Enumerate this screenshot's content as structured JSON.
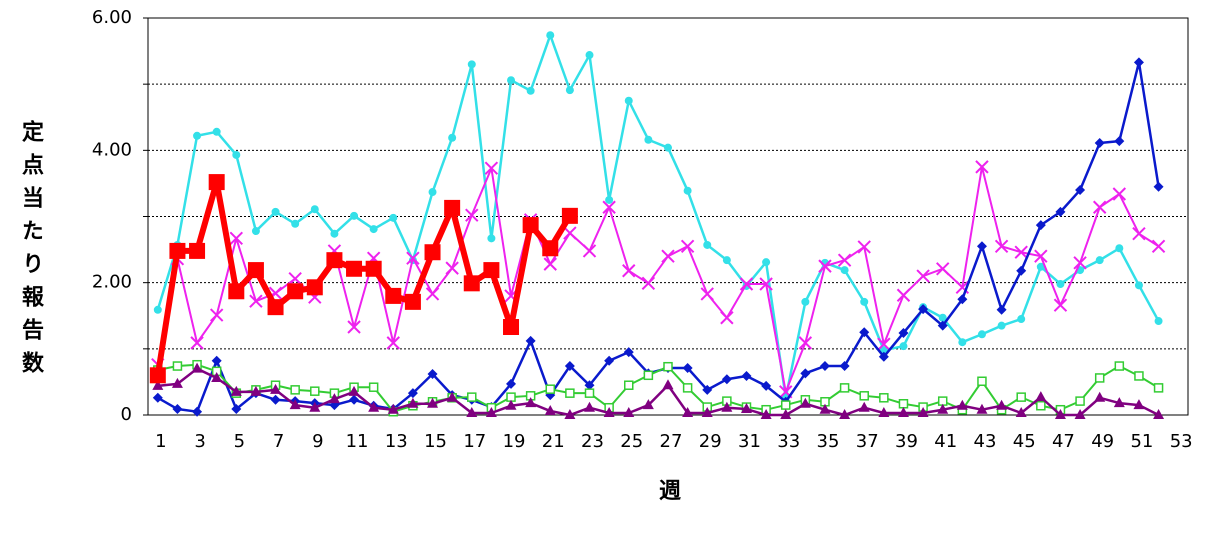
{
  "chart_data": {
    "type": "line",
    "y_label": "定点当たり報告数",
    "x_label": "週",
    "categories": [
      "1",
      null,
      "3",
      null,
      "5",
      null,
      "7",
      null,
      "9",
      null,
      "11",
      null,
      "13",
      null,
      "15",
      null,
      "17",
      null,
      "19",
      null,
      "21",
      null,
      "23",
      null,
      "25",
      null,
      "27",
      null,
      "29",
      null,
      "31",
      null,
      "33",
      null,
      "35",
      null,
      "37",
      null,
      "39",
      null,
      "41",
      null,
      "43",
      null,
      "45",
      null,
      "47",
      null,
      "49",
      null,
      "51",
      null,
      "53"
    ],
    "ylim": [
      0,
      6
    ],
    "yticks": [
      0,
      {
        "value": 1,
        "label": null
      },
      {
        "value": 2,
        "label": "2.00"
      },
      {
        "value": 3,
        "label": null
      },
      {
        "value": 4,
        "label": "4.00"
      },
      {
        "value": 5,
        "label": null
      },
      {
        "value": 6,
        "label": "6.00"
      }
    ],
    "grid": true,
    "series": [
      {
        "color": "#33e0e8",
        "marker": "circle",
        "width": 2.5,
        "values": [
          1.59,
          2.57,
          4.22,
          4.28,
          3.93,
          2.78,
          3.07,
          2.89,
          3.11,
          2.74,
          3.01,
          2.81,
          2.98,
          2.34,
          3.37,
          4.19,
          5.3,
          2.67,
          5.06,
          4.9,
          5.74,
          4.91,
          5.44,
          3.25,
          4.75,
          4.16,
          4.04,
          3.39,
          2.57,
          2.34,
          1.95,
          2.31,
          0.26,
          1.71,
          2.3,
          2.19,
          1.71,
          0.98,
          1.04,
          1.63,
          1.47,
          1.1,
          1.22,
          1.35,
          1.45,
          2.24,
          1.98,
          2.19,
          2.34,
          2.52,
          1.96,
          1.42,
          null
        ]
      },
      {
        "color": "#ee22ee",
        "marker": "x",
        "width": 2,
        "values": [
          0.76,
          2.36,
          1.09,
          1.51,
          2.67,
          1.72,
          1.84,
          2.06,
          1.78,
          2.48,
          1.33,
          2.37,
          1.09,
          2.37,
          1.83,
          2.22,
          3.02,
          3.73,
          1.8,
          2.95,
          2.28,
          2.75,
          2.48,
          3.14,
          2.18,
          1.99,
          2.4,
          2.55,
          1.83,
          1.47,
          1.98,
          1.98,
          0.35,
          1.09,
          2.25,
          2.34,
          2.54,
          1.07,
          1.81,
          2.1,
          2.21,
          1.93,
          3.75,
          2.55,
          2.46,
          2.4,
          1.66,
          2.3,
          3.14,
          3.34,
          2.74,
          2.55,
          null
        ]
      },
      {
        "color": "#0a1acc",
        "marker": "diamond",
        "width": 2.5,
        "values": [
          0.26,
          0.09,
          0.05,
          0.82,
          0.09,
          0.33,
          0.23,
          0.21,
          0.18,
          0.15,
          0.23,
          0.14,
          0.09,
          0.33,
          0.62,
          0.3,
          0.23,
          0.12,
          0.47,
          1.12,
          0.3,
          0.74,
          0.45,
          0.82,
          0.95,
          0.63,
          0.71,
          0.71,
          0.38,
          0.54,
          0.59,
          0.44,
          0.2,
          0.63,
          0.74,
          0.74,
          1.25,
          0.88,
          1.24,
          1.6,
          1.35,
          1.75,
          2.55,
          1.59,
          2.18,
          2.87,
          3.07,
          3.4,
          4.11,
          4.14,
          5.33,
          3.45,
          null
        ]
      },
      {
        "color": "#33cc33",
        "marker": "square-open",
        "width": 2,
        "values": [
          0.68,
          0.74,
          0.76,
          0.66,
          0.33,
          0.38,
          0.45,
          0.38,
          0.36,
          0.33,
          0.42,
          0.42,
          0.05,
          0.14,
          0.2,
          0.26,
          0.27,
          0.11,
          0.27,
          0.29,
          0.39,
          0.33,
          0.33,
          0.11,
          0.45,
          0.6,
          0.73,
          0.41,
          0.12,
          0.21,
          0.12,
          0.08,
          0.15,
          0.23,
          0.2,
          0.41,
          0.29,
          0.26,
          0.17,
          0.12,
          0.21,
          0.08,
          0.51,
          0.08,
          0.27,
          0.14,
          0.08,
          0.21,
          0.56,
          0.74,
          0.59,
          0.41,
          null
        ]
      },
      {
        "color": "#800080",
        "marker": "triangle",
        "width": 2.5,
        "values": [
          0.44,
          0.47,
          0.7,
          0.56,
          0.35,
          0.35,
          0.38,
          0.15,
          0.11,
          0.24,
          0.35,
          0.11,
          0.08,
          0.17,
          0.17,
          0.26,
          0.03,
          0.03,
          0.14,
          0.18,
          0.06,
          0,
          0.11,
          0.03,
          0.03,
          0.15,
          0.45,
          0.03,
          0.03,
          0.11,
          0.09,
          0,
          0,
          0.17,
          0.08,
          0,
          0.11,
          0.03,
          0.03,
          0.03,
          0.08,
          0.14,
          0.08,
          0.14,
          0.03,
          0.27,
          0,
          0,
          0.26,
          0.18,
          0.15,
          0,
          null
        ]
      },
      {
        "color": "#ff0000",
        "marker": "square",
        "width": 6,
        "values": [
          0.6,
          2.48,
          2.48,
          3.52,
          1.87,
          2.19,
          1.63,
          1.87,
          1.93,
          2.34,
          2.21,
          2.21,
          1.8,
          1.71,
          2.46,
          3.13,
          1.99,
          2.19,
          1.33,
          2.87,
          2.52,
          3.01,
          null,
          null,
          null,
          null,
          null,
          null,
          null,
          null,
          null,
          null,
          null,
          null,
          null,
          null,
          null,
          null,
          null,
          null,
          null,
          null,
          null,
          null,
          null,
          null,
          null,
          null,
          null,
          null,
          null,
          null,
          null
        ]
      }
    ]
  }
}
